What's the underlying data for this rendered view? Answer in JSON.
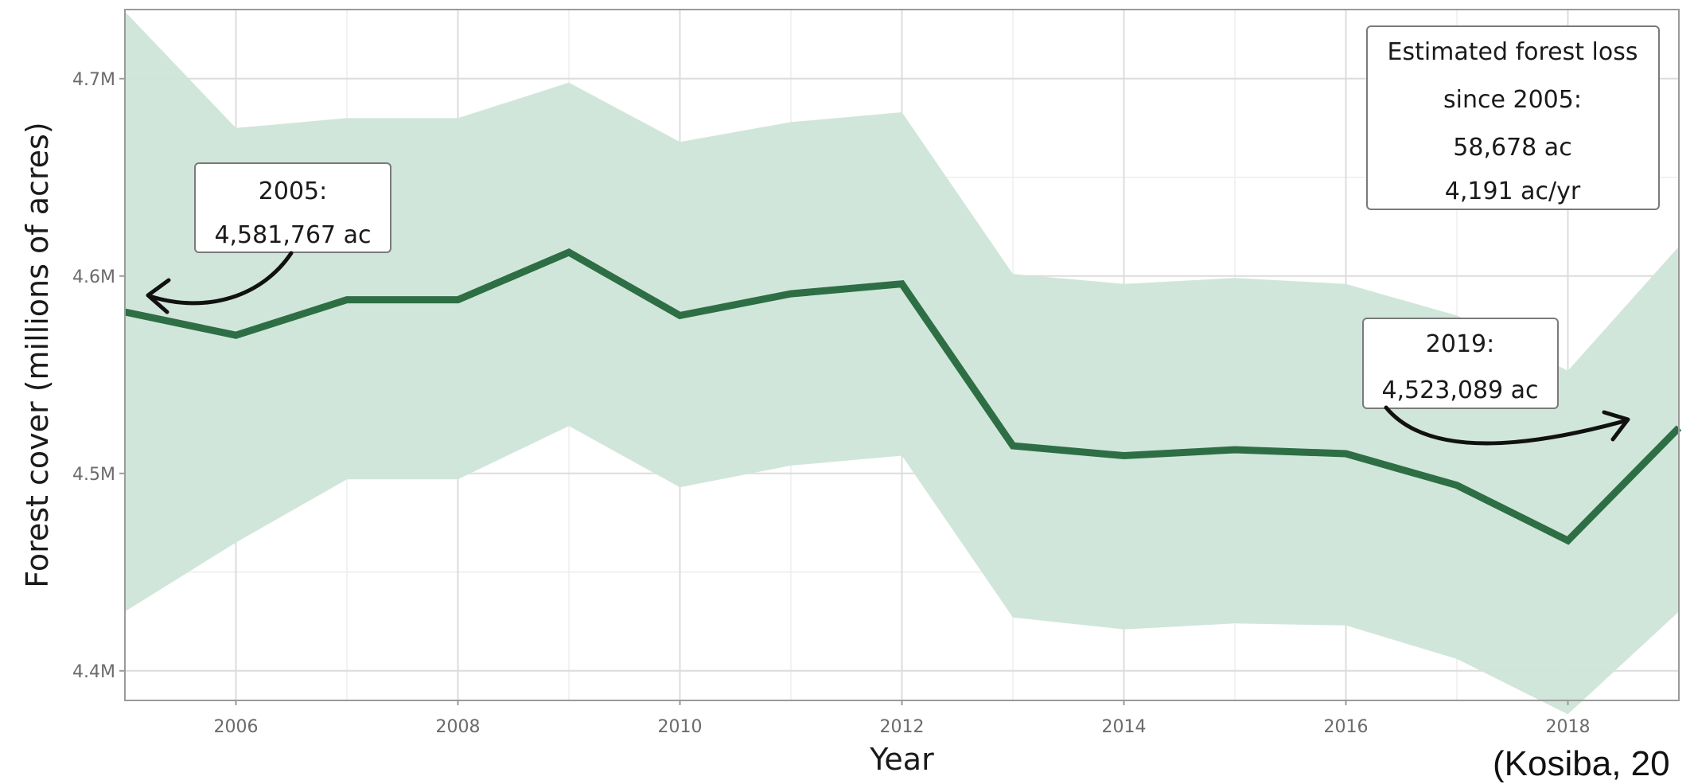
{
  "chart_data": {
    "type": "line",
    "title": "",
    "xlabel": "Year",
    "ylabel": "Forest cover (millions of acres)",
    "x": [
      2005,
      2006,
      2007,
      2008,
      2009,
      2010,
      2011,
      2012,
      2013,
      2014,
      2015,
      2016,
      2017,
      2018,
      2019
    ],
    "series": [
      {
        "values": [
          4.581767,
          4.57,
          4.588,
          4.588,
          4.612,
          4.58,
          4.591,
          4.596,
          4.514,
          4.509,
          4.512,
          4.51,
          4.494,
          4.466,
          4.523089
        ]
      }
    ],
    "band": {
      "upper": [
        4.734,
        4.675,
        4.68,
        4.68,
        4.698,
        4.668,
        4.678,
        4.683,
        4.601,
        4.596,
        4.599,
        4.596,
        4.58,
        4.552,
        4.615
      ],
      "lower": [
        4.43,
        4.465,
        4.497,
        4.497,
        4.524,
        4.493,
        4.504,
        4.509,
        4.427,
        4.421,
        4.424,
        4.423,
        4.406,
        4.378,
        4.43
      ]
    },
    "xlim": [
      2005,
      2019
    ],
    "ylim": [
      4.385,
      4.735
    ],
    "x_ticks": [
      2006,
      2008,
      2010,
      2012,
      2014,
      2016,
      2018
    ],
    "x_tick_labels": [
      "2006",
      "2008",
      "2010",
      "2012",
      "2014",
      "2016",
      "2018"
    ],
    "y_ticks": [
      4.4,
      4.5,
      4.6,
      4.7
    ],
    "y_tick_labels": [
      "4.4M",
      "4.5M",
      "4.6M",
      "4.7M"
    ],
    "grid": true,
    "colors": {
      "line": "#2e6e45",
      "band": "#cfe5d8",
      "grid_major": "#dcdcdc",
      "grid_minor": "#ededed",
      "frame": "#9a9a9a"
    },
    "annotations": [
      {
        "lines": [
          "2005:",
          "4,581,767 ac"
        ]
      },
      {
        "lines": [
          "2019:",
          "4,523,089 ac"
        ]
      },
      {
        "lines": [
          "Estimated forest loss",
          "since 2005:",
          "58,678 ac",
          "4,191 ac/yr"
        ]
      }
    ]
  },
  "citation": "(Kosiba, 20"
}
